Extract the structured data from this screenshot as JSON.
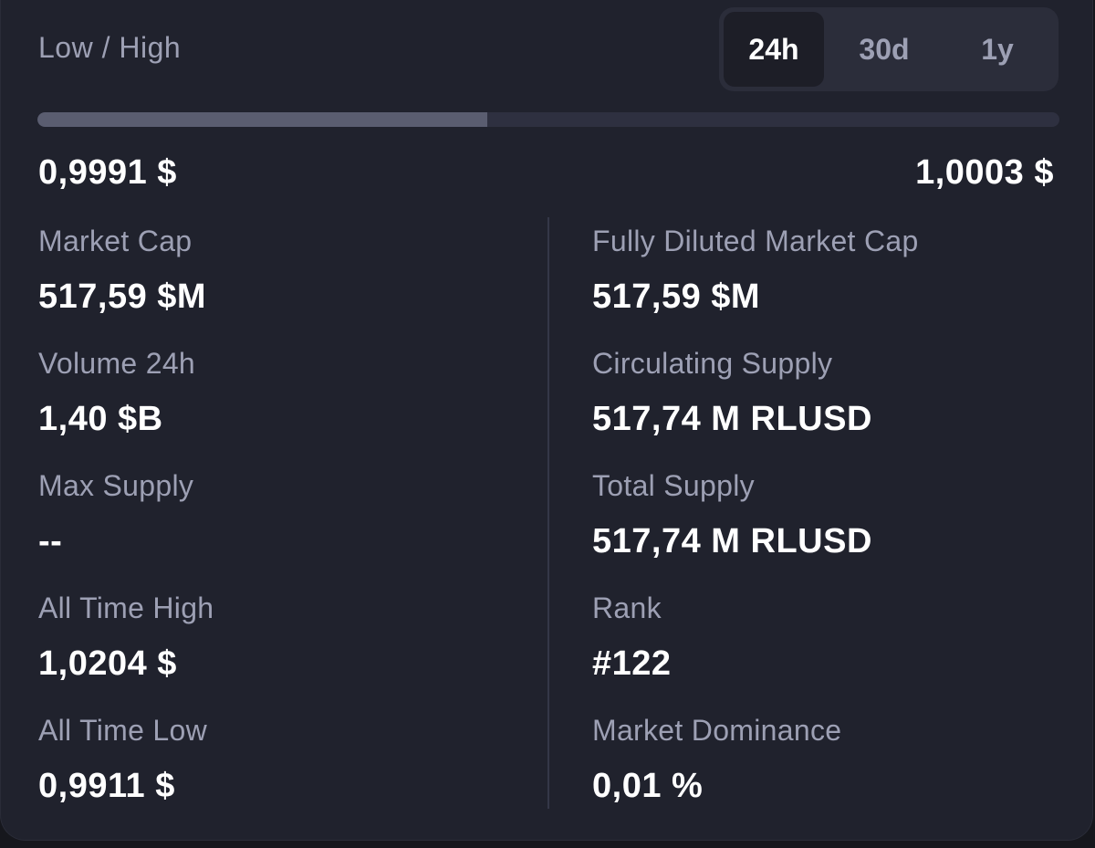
{
  "range": {
    "label": "Low / High",
    "low": "0,9991 $",
    "high": "1,0003 $",
    "fill_fraction": 0.44,
    "tabs": [
      {
        "label": "24h",
        "active": true
      },
      {
        "label": "30d",
        "active": false
      },
      {
        "label": "1y",
        "active": false
      }
    ]
  },
  "stats_left": [
    {
      "label": "Market Cap",
      "value": "517,59 $M"
    },
    {
      "label": "Volume 24h",
      "value": "1,40 $B"
    },
    {
      "label": "Max Supply",
      "value": "--"
    },
    {
      "label": "All Time High",
      "value": "1,0204 $"
    },
    {
      "label": "All Time Low",
      "value": "0,9911 $"
    }
  ],
  "stats_right": [
    {
      "label": "Fully Diluted Market Cap",
      "value": "517,59 $M"
    },
    {
      "label": "Circulating Supply",
      "value": "517,74 M RLUSD"
    },
    {
      "label": "Total Supply",
      "value": "517,74 M RLUSD"
    },
    {
      "label": "Rank",
      "value": "#122"
    },
    {
      "label": "Market Dominance",
      "value": "0,01 %"
    }
  ]
}
